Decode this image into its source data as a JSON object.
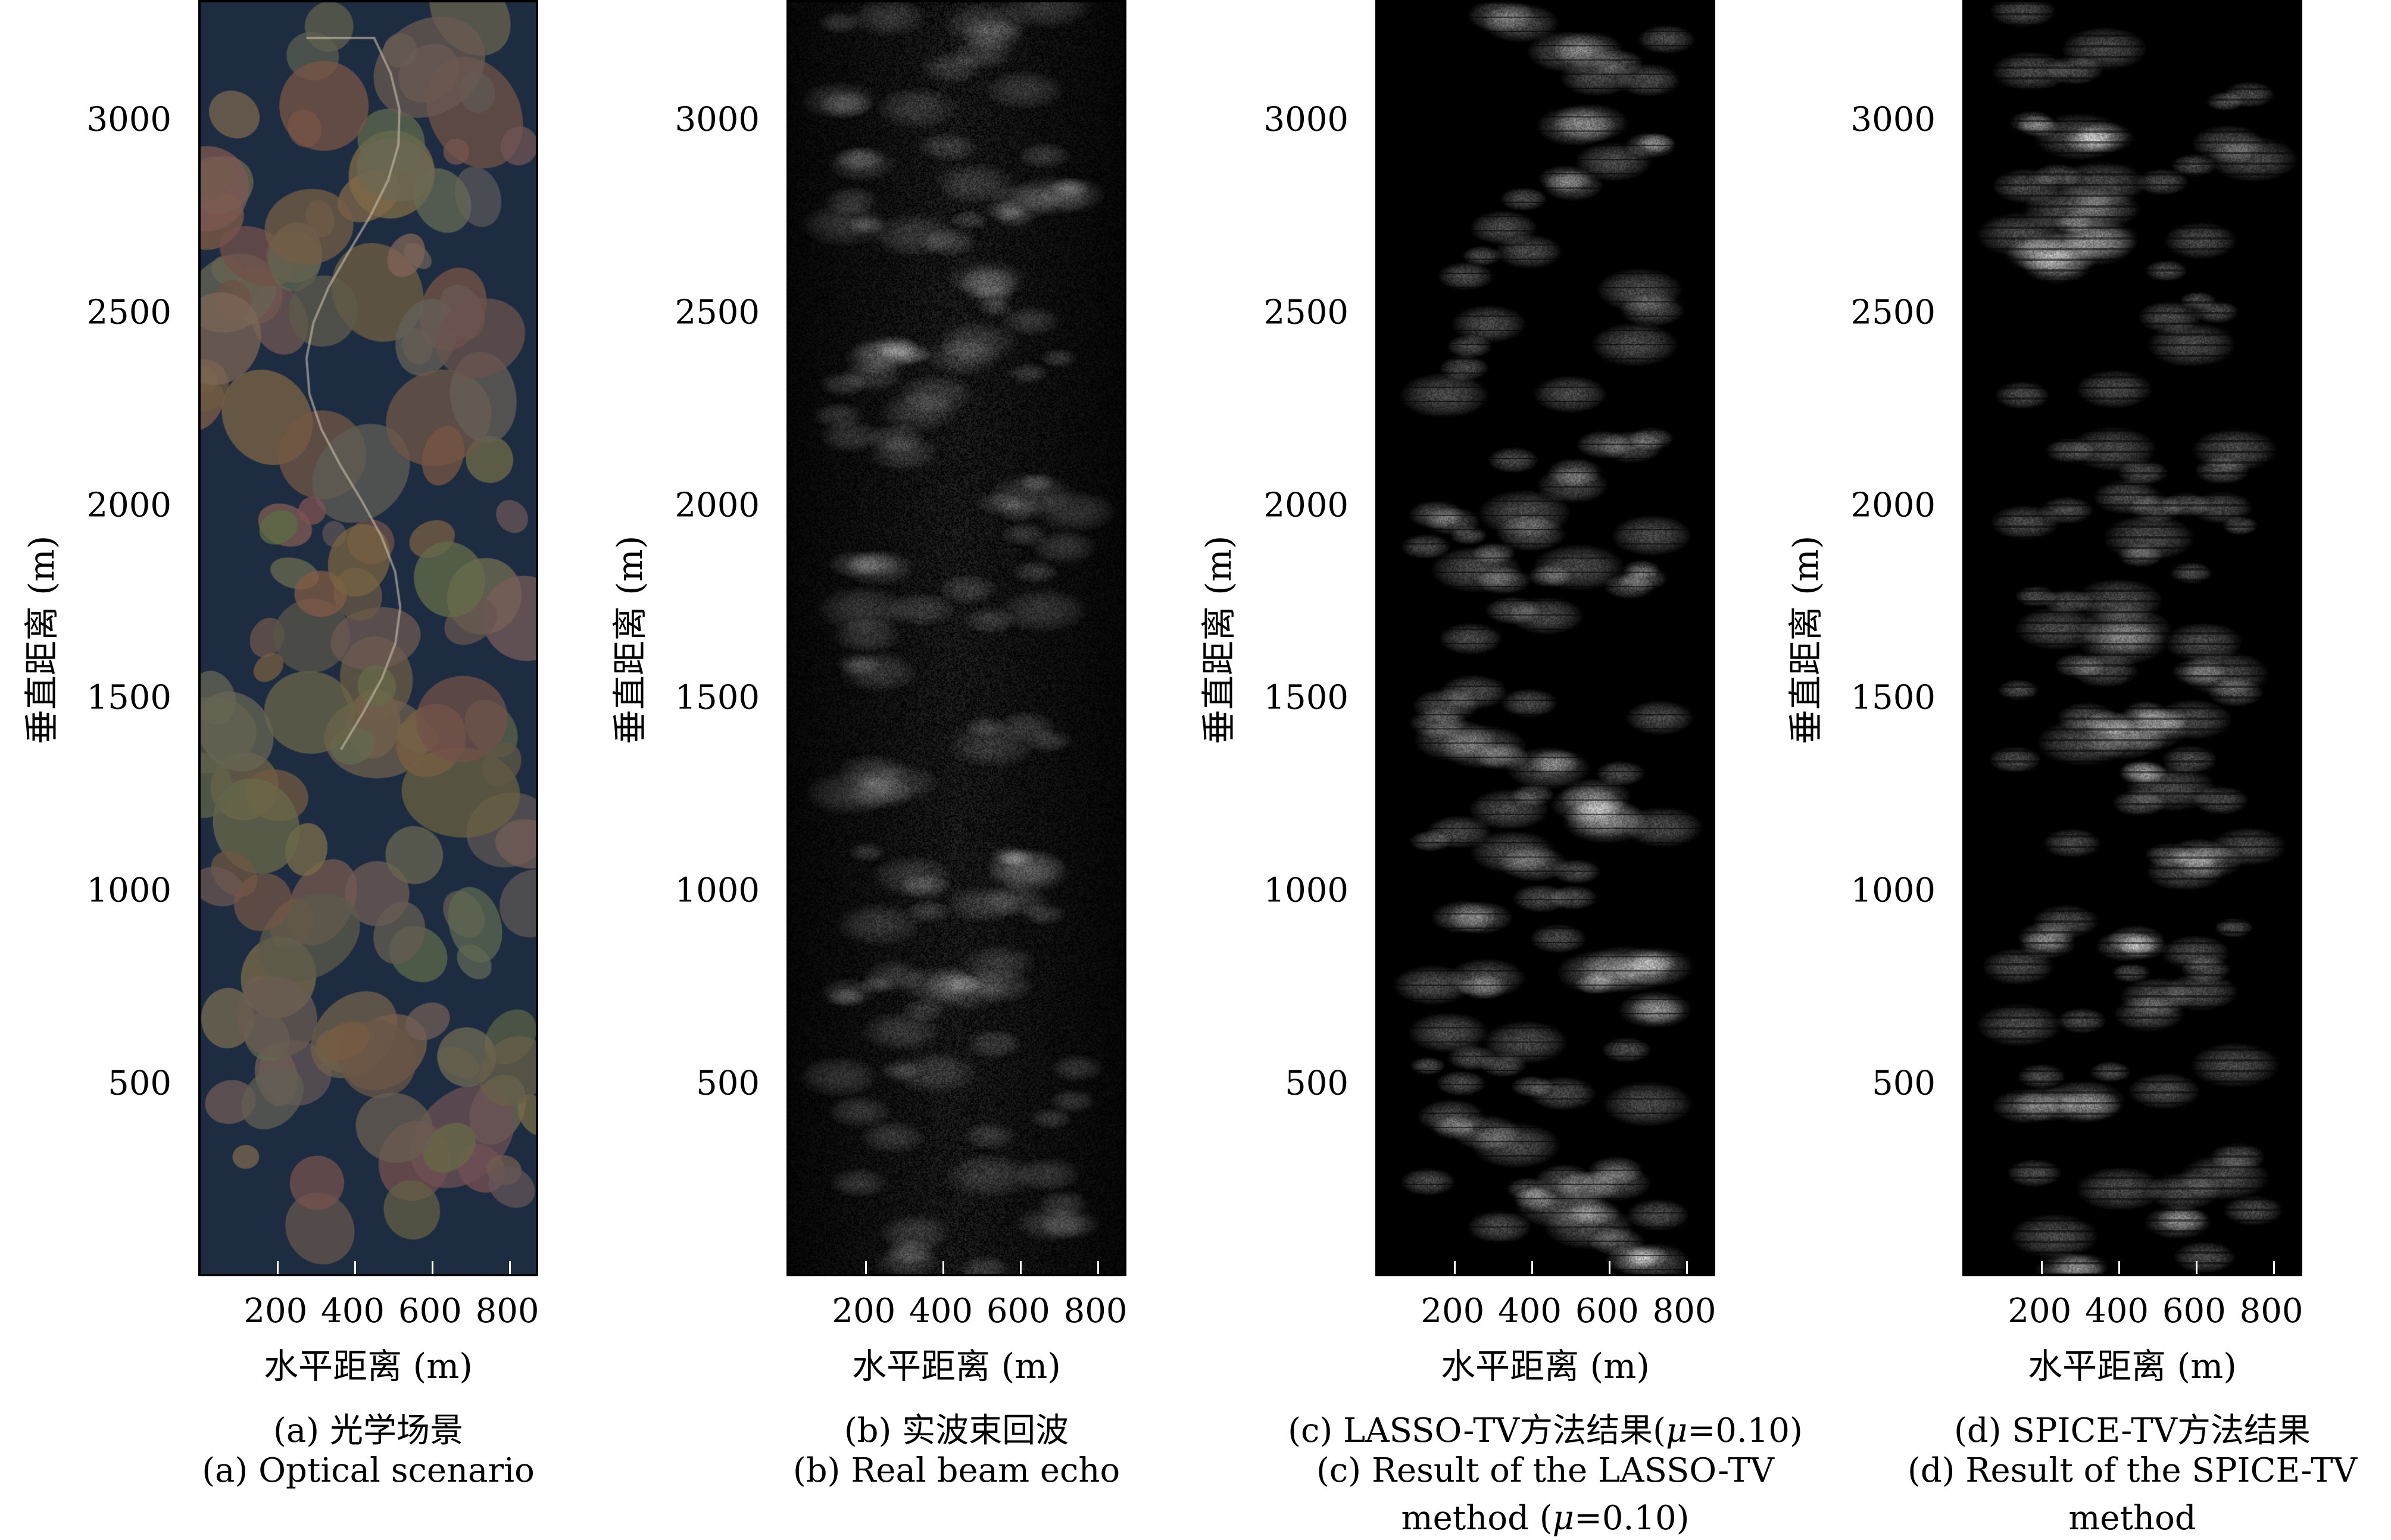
{
  "chart_data": [
    {
      "type": "heatmap",
      "image": "optical color satellite scene",
      "xlabel": "水平距离 (m)",
      "ylabel": "垂直距离 (m)",
      "xlim": [
        0,
        880
      ],
      "ylim": [
        0,
        3310
      ],
      "xticks": [
        "200",
        "400",
        "600",
        "800"
      ],
      "yticks": [
        "500",
        "1000",
        "1500",
        "2000",
        "2500",
        "3000"
      ],
      "caption": [
        "(a) 光学场景",
        "(a) Optical scenario"
      ],
      "colors": {
        "background": "#1d2c40",
        "patch": "#6b5a48"
      }
    },
    {
      "type": "heatmap",
      "image": "grayscale radar echo",
      "xlabel": "水平距离 (m)",
      "ylabel": "垂直距离 (m)",
      "xlim": [
        0,
        880
      ],
      "ylim": [
        0,
        3310
      ],
      "xticks": [
        "200",
        "400",
        "600",
        "800"
      ],
      "yticks": [
        "500",
        "1000",
        "1500",
        "2000",
        "2500",
        "3000"
      ],
      "caption": [
        "(b) 实波束回波",
        "(b) Real beam echo"
      ],
      "colors": {
        "background": "#000000",
        "patch": "#bbbbbb"
      }
    },
    {
      "type": "heatmap",
      "image": "grayscale reconstruction",
      "xlabel": "水平距离 (m)",
      "ylabel": "垂直距离 (m)",
      "xlim": [
        0,
        880
      ],
      "ylim": [
        0,
        3310
      ],
      "xticks": [
        "200",
        "400",
        "600",
        "800"
      ],
      "yticks": [
        "500",
        "1000",
        "1500",
        "2000",
        "2500",
        "3000"
      ],
      "caption": [
        "(c) LASSO-TV方法结果(μ=0.10)",
        "(c) Result of the LASSO-TV",
        "method (μ=0.10)"
      ],
      "colors": {
        "background": "#000000",
        "patch": "#aaaaaa"
      }
    },
    {
      "type": "heatmap",
      "image": "grayscale reconstruction",
      "xlabel": "水平距离 (m)",
      "ylabel": "垂直距离 (m)",
      "xlim": [
        0,
        880
      ],
      "ylim": [
        0,
        3310
      ],
      "xticks": [
        "200",
        "400",
        "600",
        "800"
      ],
      "yticks": [
        "500",
        "1000",
        "1500",
        "2000",
        "2500",
        "3000"
      ],
      "caption": [
        "(d) SPICE-TV方法结果",
        "(d) Result of the SPICE-TV",
        "method"
      ],
      "colors": {
        "background": "#000000",
        "patch": "#999999"
      }
    }
  ]
}
